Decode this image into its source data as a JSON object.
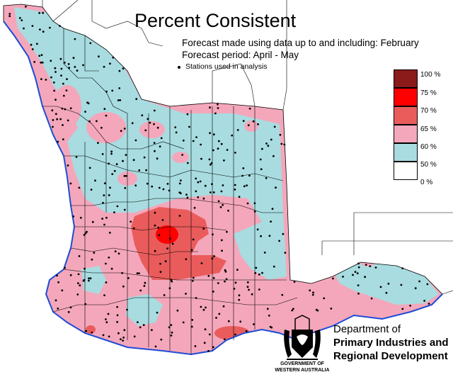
{
  "title": "Percent Consistent",
  "subtitle_forecast_made": "Forecast made using data up to and including: February",
  "subtitle_forecast_period": "Forecast period: April - May",
  "stations_note": "Stations used in analysis",
  "legend": [
    {
      "label": "100 %",
      "color": "#8b1a1a"
    },
    {
      "label": "75 %",
      "color": "#ff0000"
    },
    {
      "label": "70 %",
      "color": "#ea5c5c"
    },
    {
      "label": "65 %",
      "color": "#f4a7bb"
    },
    {
      "label": "60 %",
      "color": "#a8dce0"
    },
    {
      "label": "50 %",
      "color": "#ffffff"
    },
    {
      "label": "0 %",
      "color": "#ffffff"
    }
  ],
  "logo": {
    "dept_line1": "Department of",
    "dept_line2": "Primary Industries and",
    "dept_line3": "Regional Development",
    "gov_line1": "GOVERNMENT OF",
    "gov_line2": "WESTERN AUSTRALIA"
  },
  "colors": {
    "pink": "#f4a7bb",
    "blue": "#a8dce0",
    "red": "#ea5c5c",
    "bright_red": "#ff0000",
    "sea": "#1e4bd6"
  }
}
